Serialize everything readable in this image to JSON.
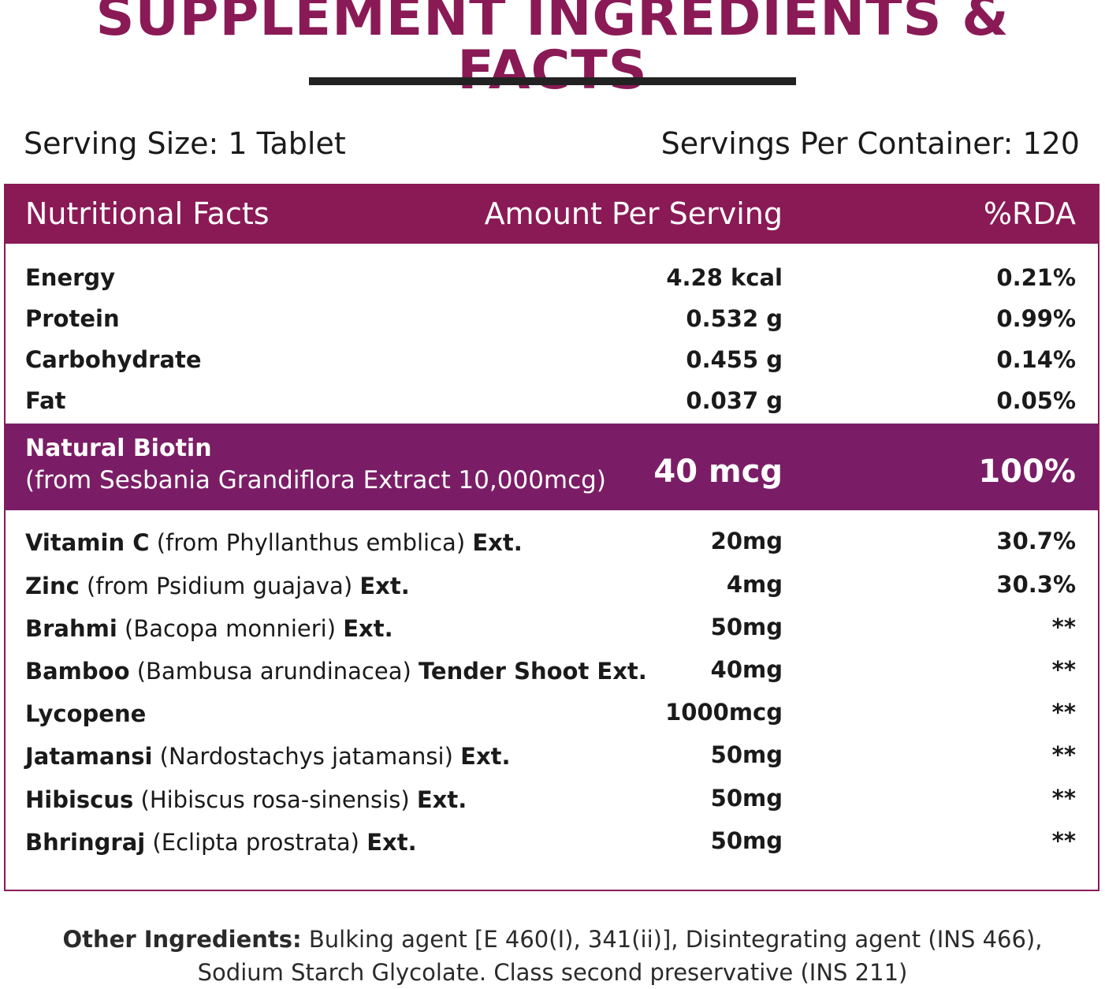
{
  "title": "SUPPLEMENT INGREDIENTS & FACTS",
  "serving": {
    "size": "Serving Size: 1 Tablet",
    "per_container": "Servings Per Container: 120"
  },
  "table_header": {
    "name": "Nutritional Facts",
    "amount": "Amount Per Serving",
    "rda": "%RDA"
  },
  "nutrition_rows": [
    {
      "name": "Energy",
      "amount": "4.28 kcal",
      "rda": "0.21%"
    },
    {
      "name": "Protein",
      "amount": "0.532 g",
      "rda": "0.99%"
    },
    {
      "name": "Carbohydrate",
      "amount": "0.455 g",
      "rda": "0.14%"
    },
    {
      "name": "Fat",
      "amount": "0.037 g",
      "rda": "0.05%"
    }
  ],
  "biotin": {
    "name": "Natural Biotin",
    "source": "(from Sesbania Grandiflora Extract 10,000mcg)",
    "amount": "40 mcg",
    "rda": "100%"
  },
  "ingredients": [
    {
      "bold": "Vitamin C",
      "source": " (from Phyllanthus emblica) ",
      "suffix": "Ext.",
      "amount": "20mg",
      "rda": "30.7%"
    },
    {
      "bold": "Zinc",
      "source": " (from Psidium guajava) ",
      "suffix": "Ext.",
      "amount": "4mg",
      "rda": "30.3%"
    },
    {
      "bold": "Brahmi",
      "source": " (Bacopa monnieri) ",
      "suffix": "Ext.",
      "amount": "50mg",
      "rda": "**"
    },
    {
      "bold": "Bamboo",
      "source": " (Bambusa arundinacea) ",
      "suffix": "Tender Shoot Ext.",
      "amount": "40mg",
      "rda": "**"
    },
    {
      "bold": "Lycopene",
      "source": "",
      "suffix": "",
      "amount": "1000mcg",
      "rda": "**"
    },
    {
      "bold": "Jatamansi",
      "source": " (Nardostachys jatamansi) ",
      "suffix": "Ext.",
      "amount": "50mg",
      "rda": "**"
    },
    {
      "bold": "Hibiscus",
      "source": " (Hibiscus rosa-sinensis) ",
      "suffix": "Ext.",
      "amount": "50mg",
      "rda": "**"
    },
    {
      "bold": "Bhringraj",
      "source": " (Eclipta prostrata) ",
      "suffix": "Ext.",
      "amount": "50mg",
      "rda": "**"
    }
  ],
  "other": {
    "label": "Other Ingredients:",
    "line1": " Bulking agent [E 460(I), 341(ii)], Disintegrating agent (INS 466),",
    "line2": "Sodium Starch Glycolate. Class second preservative (INS 211)"
  },
  "colors": {
    "brand": "#8a1a55",
    "biotin_band": "#7a1d66",
    "rule": "#222222"
  }
}
